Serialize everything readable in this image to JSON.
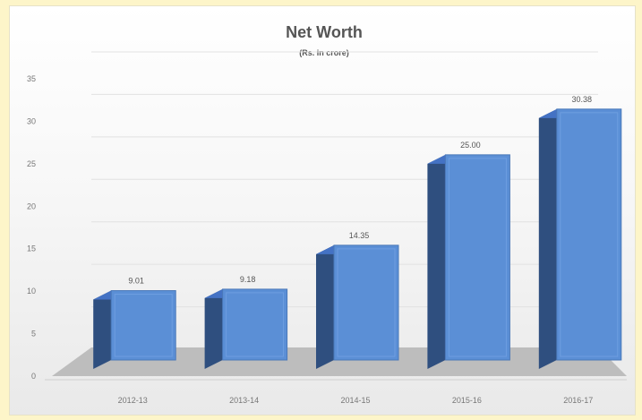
{
  "chart_data": {
    "type": "bar",
    "title": "Net Worth",
    "subtitle": "(Rs. in crore)",
    "categories": [
      "2012-13",
      "2013-14",
      "2014-15",
      "2015-16",
      "2016-17"
    ],
    "values": [
      9.01,
      9.18,
      14.35,
      25.0,
      30.38
    ],
    "data_labels": [
      "9.01",
      "9.18",
      "14.35",
      "25.00",
      "30.38"
    ],
    "yticks": [
      "0",
      "5",
      "10",
      "15",
      "20",
      "25",
      "30",
      "35"
    ],
    "ylim": [
      0,
      35
    ],
    "grid": true,
    "legend": "none",
    "style": "3d-column",
    "colors": {
      "bar_front": "#5b8fd6",
      "bar_top": "#4472c4",
      "bar_side": "#2f4f7f",
      "floor": "#bdbdbd",
      "page_background": "#fdf5c9"
    }
  }
}
